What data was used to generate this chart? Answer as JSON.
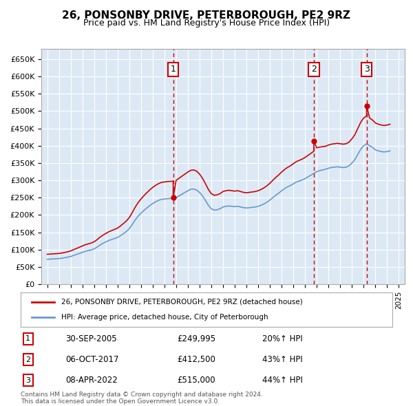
{
  "title": "26, PONSONBY DRIVE, PETERBOROUGH, PE2 9RZ",
  "subtitle": "Price paid vs. HM Land Registry's House Price Index (HPI)",
  "xlabel": "",
  "ylabel": "",
  "background_color": "#dce9f5",
  "plot_bg_color": "#dce9f5",
  "fig_bg_color": "#ffffff",
  "legend_line1": "26, PONSONBY DRIVE, PETERBOROUGH, PE2 9RZ (detached house)",
  "legend_line2": "HPI: Average price, detached house, City of Peterborough",
  "footer": "Contains HM Land Registry data © Crown copyright and database right 2024.\nThis data is licensed under the Open Government Licence v3.0.",
  "transactions": [
    {
      "num": 1,
      "date": "30-SEP-2005",
      "price": 249995,
      "pct": "20%↑ HPI",
      "year_x": 2005.75
    },
    {
      "num": 2,
      "date": "06-OCT-2017",
      "price": 412500,
      "pct": "43%↑ HPI",
      "year_x": 2017.75
    },
    {
      "num": 3,
      "date": "08-APR-2022",
      "price": 515000,
      "pct": "44%↑ HPI",
      "year_x": 2022.25
    }
  ],
  "red_line_color": "#cc0000",
  "blue_line_color": "#6699cc",
  "vline_color": "#cc0000",
  "box_color": "#cc0000",
  "ylim": [
    0,
    680000
  ],
  "yticks": [
    0,
    50000,
    100000,
    150000,
    200000,
    250000,
    300000,
    350000,
    400000,
    450000,
    500000,
    550000,
    600000,
    650000
  ],
  "xlim_min": 1994.5,
  "xlim_max": 2025.5,
  "xticks": [
    1995,
    1996,
    1997,
    1998,
    1999,
    2000,
    2001,
    2002,
    2003,
    2004,
    2005,
    2006,
    2007,
    2008,
    2009,
    2010,
    2011,
    2012,
    2013,
    2014,
    2015,
    2016,
    2017,
    2018,
    2019,
    2020,
    2021,
    2022,
    2023,
    2024,
    2025
  ],
  "hpi_data": {
    "years": [
      1995.0,
      1995.25,
      1995.5,
      1995.75,
      1996.0,
      1996.25,
      1996.5,
      1996.75,
      1997.0,
      1997.25,
      1997.5,
      1997.75,
      1998.0,
      1998.25,
      1998.5,
      1998.75,
      1999.0,
      1999.25,
      1999.5,
      1999.75,
      2000.0,
      2000.25,
      2000.5,
      2000.75,
      2001.0,
      2001.25,
      2001.5,
      2001.75,
      2002.0,
      2002.25,
      2002.5,
      2002.75,
      2003.0,
      2003.25,
      2003.5,
      2003.75,
      2004.0,
      2004.25,
      2004.5,
      2004.75,
      2005.0,
      2005.25,
      2005.5,
      2005.75,
      2006.0,
      2006.25,
      2006.5,
      2006.75,
      2007.0,
      2007.25,
      2007.5,
      2007.75,
      2008.0,
      2008.25,
      2008.5,
      2008.75,
      2009.0,
      2009.25,
      2009.5,
      2009.75,
      2010.0,
      2010.25,
      2010.5,
      2010.75,
      2011.0,
      2011.25,
      2011.5,
      2011.75,
      2012.0,
      2012.25,
      2012.5,
      2012.75,
      2013.0,
      2013.25,
      2013.5,
      2013.75,
      2014.0,
      2014.25,
      2014.5,
      2014.75,
      2015.0,
      2015.25,
      2015.5,
      2015.75,
      2016.0,
      2016.25,
      2016.5,
      2016.75,
      2017.0,
      2017.25,
      2017.5,
      2017.75,
      2018.0,
      2018.25,
      2018.5,
      2018.75,
      2019.0,
      2019.25,
      2019.5,
      2019.75,
      2020.0,
      2020.25,
      2020.5,
      2020.75,
      2021.0,
      2021.25,
      2021.5,
      2021.75,
      2022.0,
      2022.25,
      2022.5,
      2022.75,
      2023.0,
      2023.25,
      2023.5,
      2023.75,
      2024.0,
      2024.25
    ],
    "prices": [
      72000,
      72500,
      73000,
      73500,
      74000,
      75000,
      76500,
      78000,
      80000,
      83000,
      86000,
      89000,
      92000,
      95000,
      97000,
      99000,
      102000,
      107000,
      113000,
      118000,
      122000,
      126000,
      129000,
      132000,
      135000,
      140000,
      146000,
      152000,
      160000,
      172000,
      185000,
      196000,
      205000,
      213000,
      220000,
      227000,
      233000,
      238000,
      242000,
      245000,
      246000,
      247000,
      247500,
      248000,
      250000,
      255000,
      260000,
      265000,
      270000,
      274000,
      275000,
      272000,
      265000,
      255000,
      242000,
      228000,
      218000,
      214000,
      215000,
      218000,
      223000,
      225000,
      226000,
      225000,
      224000,
      225000,
      223000,
      221000,
      220000,
      221000,
      222000,
      223000,
      225000,
      228000,
      232000,
      237000,
      243000,
      250000,
      257000,
      263000,
      270000,
      276000,
      281000,
      285000,
      290000,
      295000,
      298000,
      301000,
      305000,
      310000,
      315000,
      320000,
      325000,
      328000,
      330000,
      332000,
      335000,
      337000,
      338000,
      339000,
      338000,
      337000,
      338000,
      342000,
      350000,
      360000,
      375000,
      390000,
      400000,
      405000,
      400000,
      395000,
      388000,
      385000,
      383000,
      382000,
      383000,
      385000
    ]
  },
  "red_line_data": {
    "years": [
      1995.0,
      1995.25,
      1995.5,
      1995.75,
      1996.0,
      1996.25,
      1996.5,
      1996.75,
      1997.0,
      1997.25,
      1997.5,
      1997.75,
      1998.0,
      1998.25,
      1998.5,
      1998.75,
      1999.0,
      1999.25,
      1999.5,
      1999.75,
      2000.0,
      2000.25,
      2000.5,
      2000.75,
      2001.0,
      2001.25,
      2001.5,
      2001.75,
      2002.0,
      2002.25,
      2002.5,
      2002.75,
      2003.0,
      2003.25,
      2003.5,
      2003.75,
      2004.0,
      2004.25,
      2004.5,
      2004.75,
      2005.0,
      2005.25,
      2005.5,
      2005.75,
      2005.75,
      2006.0,
      2006.25,
      2006.5,
      2006.75,
      2007.0,
      2007.25,
      2007.5,
      2007.75,
      2008.0,
      2008.25,
      2008.5,
      2008.75,
      2009.0,
      2009.25,
      2009.5,
      2009.75,
      2010.0,
      2010.25,
      2010.5,
      2010.75,
      2011.0,
      2011.25,
      2011.5,
      2011.75,
      2012.0,
      2012.25,
      2012.5,
      2012.75,
      2013.0,
      2013.25,
      2013.5,
      2013.75,
      2014.0,
      2014.25,
      2014.5,
      2014.75,
      2015.0,
      2015.25,
      2015.5,
      2015.75,
      2016.0,
      2016.25,
      2016.5,
      2016.75,
      2017.0,
      2017.25,
      2017.5,
      2017.75,
      2017.75,
      2018.0,
      2018.25,
      2018.5,
      2018.75,
      2019.0,
      2019.25,
      2019.5,
      2019.75,
      2020.0,
      2020.25,
      2020.5,
      2020.75,
      2021.0,
      2021.25,
      2021.5,
      2021.75,
      2022.0,
      2022.25,
      2022.25,
      2022.5,
      2022.75,
      2023.0,
      2023.25,
      2023.5,
      2023.75,
      2024.0,
      2024.25
    ],
    "prices": [
      86400,
      87000,
      87600,
      88200,
      88800,
      90000,
      91800,
      93600,
      96000,
      99600,
      103200,
      106800,
      110400,
      114000,
      116400,
      118800,
      122400,
      128400,
      135600,
      141600,
      146400,
      151200,
      154800,
      158400,
      162000,
      168000,
      175200,
      182400,
      192000,
      206400,
      222000,
      235200,
      246000,
      255600,
      264000,
      272400,
      279600,
      285600,
      290400,
      294000,
      295200,
      296400,
      297000,
      297600,
      249995,
      300000,
      306000,
      312000,
      318000,
      324000,
      328800,
      330000,
      326400,
      318000,
      306000,
      290400,
      273600,
      261600,
      256800,
      258000,
      261600,
      267600,
      270000,
      271200,
      270000,
      268800,
      270000,
      267600,
      265200,
      264000,
      265200,
      266400,
      267600,
      270000,
      273600,
      278400,
      284400,
      291600,
      300000,
      308400,
      315600,
      324000,
      331200,
      337200,
      342000,
      348000,
      354000,
      357600,
      361200,
      366000,
      372000,
      378000,
      384000,
      412500,
      393600,
      396000,
      397200,
      398400,
      402000,
      404400,
      405600,
      406800,
      405600,
      404400,
      405600,
      410400,
      420000,
      432000,
      450000,
      468000,
      480000,
      486000,
      515000,
      480000,
      474000,
      465600,
      462000,
      459600,
      458400,
      459600,
      462000
    ]
  }
}
